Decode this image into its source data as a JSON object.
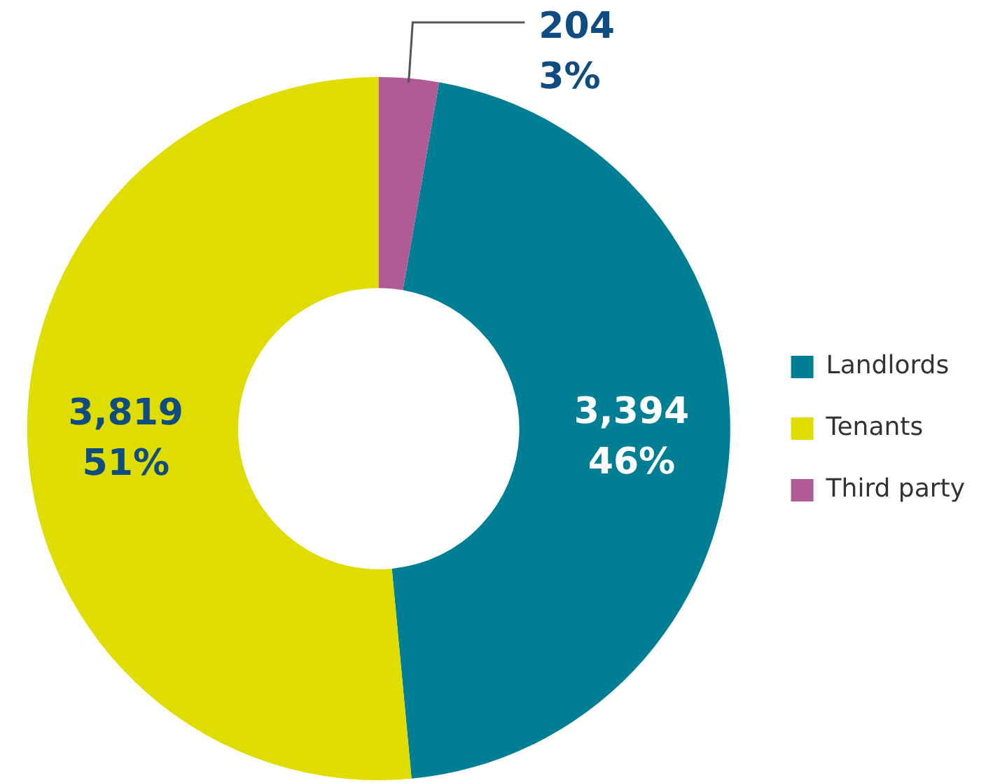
{
  "chart_data": {
    "type": "donut",
    "categories": [
      "Landlords",
      "Tenants",
      "Third party"
    ],
    "values": [
      3394,
      3819,
      204
    ],
    "colors": [
      "#007f94",
      "#dfdc00",
      "#b05a96"
    ],
    "value_labels": [
      "3,394\n46%",
      "3,819\n51%",
      "204\n3%"
    ],
    "legend": "right"
  }
}
